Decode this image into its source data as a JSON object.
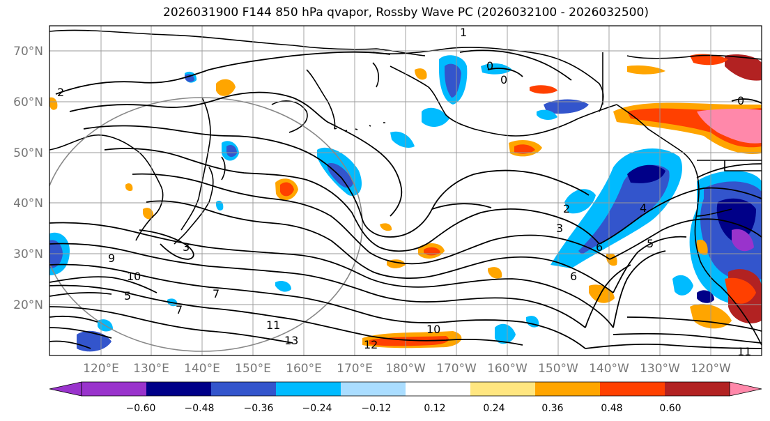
{
  "title": "2026031900 F144 850 hPa qvapor, Rossby Wave PC (2026032100 - 2026032500)",
  "map": {
    "lat_labels": [
      "70°N",
      "60°N",
      "50°N",
      "40°N",
      "30°N",
      "20°N"
    ],
    "lon_labels": [
      "120°E",
      "130°E",
      "140°E",
      "150°E",
      "160°E",
      "170°E",
      "180°W",
      "170°W",
      "160°W",
      "150°W",
      "140°W",
      "130°W",
      "120°W"
    ],
    "contour_labels": [
      "1",
      "2",
      "0",
      "0",
      "0",
      "2",
      "3",
      "4",
      "5",
      "6",
      "6",
      "7",
      "7",
      "9",
      "10",
      "10",
      "11",
      "11",
      "13",
      "3",
      "5",
      "12"
    ]
  },
  "colorbar": {
    "ticks": [
      "−0.60",
      "−0.48",
      "−0.36",
      "−0.24",
      "−0.12",
      "0.12",
      "0.24",
      "0.36",
      "0.48",
      "0.60"
    ],
    "colors": [
      "#9933cc",
      "#000088",
      "#3355cc",
      "#00bbff",
      "#aaddff",
      "#ffffff",
      "#ffe680",
      "#ffa500",
      "#ff4000",
      "#b22222",
      "#ff88aa"
    ]
  },
  "colors": {
    "neg_light": "#aaddff",
    "neg_cyan": "#00bbff",
    "neg_blue": "#3355cc",
    "neg_navy": "#000088",
    "neg_purple": "#9933cc",
    "pos_yellow": "#ffe680",
    "pos_orange": "#ffa500",
    "pos_red": "#ff4000",
    "pos_dark": "#b22222",
    "pos_pink": "#ff88aa",
    "grid": "#999999",
    "tick_text": "#777777"
  }
}
